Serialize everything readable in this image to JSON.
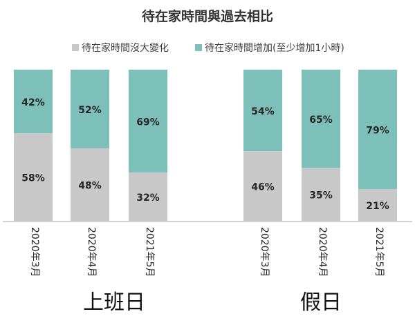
{
  "chart_data": {
    "type": "bar",
    "stacked": true,
    "title": "待在家時間與過去相比",
    "series": [
      {
        "name": "待在家時間沒大變化",
        "color": "#c8c8c8",
        "values": [
          58,
          48,
          32,
          46,
          35,
          21
        ]
      },
      {
        "name": "待在家時間增加(至少增加1小時)",
        "color": "#7dc0b9",
        "values": [
          42,
          52,
          69,
          54,
          65,
          79
        ]
      }
    ],
    "categories": [
      "2020年3月",
      "2020年4月",
      "2021年5月",
      "2020年3月",
      "2020年4月",
      "2021年5月"
    ],
    "groups": [
      {
        "label": "上班日",
        "indices": [
          0,
          1,
          2
        ]
      },
      {
        "label": "假日",
        "indices": [
          3,
          4,
          5
        ]
      }
    ],
    "value_suffix": "%",
    "ylim": [
      0,
      100
    ],
    "grid": false,
    "legend_position": "top"
  }
}
